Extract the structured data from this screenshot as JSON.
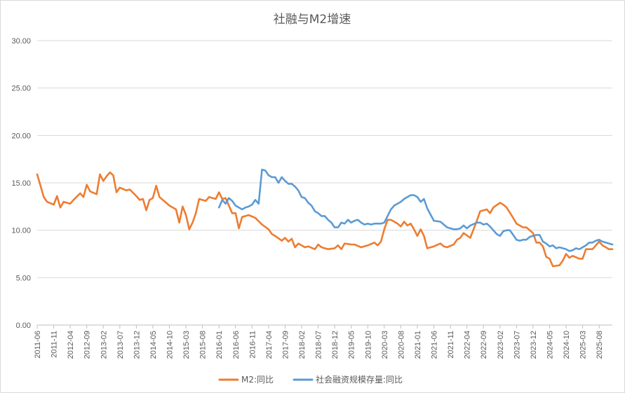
{
  "chart_data": {
    "type": "line",
    "title": "社融与M2增速",
    "xlabel": "",
    "ylabel": "",
    "ylim": [
      0,
      30
    ],
    "yticks": [
      "0.00",
      "5.00",
      "10.00",
      "15.00",
      "20.00",
      "25.00",
      "30.00"
    ],
    "xlim": [
      "2011-06",
      "2025-12"
    ],
    "xticks": [
      "2011-06",
      "2011-11",
      "2012-04",
      "2012-09",
      "2013-02",
      "2013-07",
      "2013-12",
      "2014-05",
      "2014-10",
      "2015-03",
      "2015-08",
      "2016-01",
      "2016-06",
      "2016-11",
      "2017-04",
      "2017-09",
      "2018-02",
      "2018-07",
      "2018-12",
      "2019-05",
      "2019-10",
      "2020-03",
      "2020-08",
      "2021-01",
      "2021-06",
      "2021-11",
      "2022-04",
      "2022-09",
      "2023-02",
      "2023-07",
      "2023-12",
      "2024-05",
      "2024-10",
      "2025-03",
      "2025-08"
    ],
    "grid": true,
    "legend": "bottom",
    "series": [
      {
        "name": "M2:同比",
        "color": "#ED7D31",
        "x": [
          "2011-06",
          "2011-08",
          "2011-09",
          "2011-11",
          "2011-12",
          "2012-01",
          "2012-02",
          "2012-04",
          "2012-05",
          "2012-07",
          "2012-08",
          "2012-09",
          "2012-10",
          "2012-12",
          "2013-01",
          "2013-02",
          "2013-03",
          "2013-04",
          "2013-05",
          "2013-06",
          "2013-07",
          "2013-09",
          "2013-10",
          "2013-12",
          "2014-01",
          "2014-02",
          "2014-03",
          "2014-04",
          "2014-05",
          "2014-06",
          "2014-07",
          "2014-09",
          "2014-10",
          "2014-12",
          "2015-01",
          "2015-02",
          "2015-03",
          "2015-04",
          "2015-05",
          "2015-06",
          "2015-07",
          "2015-09",
          "2015-10",
          "2015-12",
          "2016-01",
          "2016-02",
          "2016-03",
          "2016-05",
          "2016-06",
          "2016-07",
          "2016-08",
          "2016-10",
          "2016-12",
          "2017-02",
          "2017-04",
          "2017-05",
          "2017-06",
          "2017-08",
          "2017-09",
          "2017-10",
          "2017-11",
          "2017-12",
          "2018-01",
          "2018-03",
          "2018-04",
          "2018-06",
          "2018-07",
          "2018-08",
          "2018-10",
          "2018-12",
          "2019-01",
          "2019-02",
          "2019-03",
          "2019-05",
          "2019-06",
          "2019-08",
          "2019-10",
          "2019-12",
          "2020-01",
          "2020-02",
          "2020-03",
          "2020-04",
          "2020-05",
          "2020-07",
          "2020-08",
          "2020-09",
          "2020-10",
          "2020-11",
          "2020-12",
          "2021-01",
          "2021-02",
          "2021-03",
          "2021-04",
          "2021-06",
          "2021-08",
          "2021-09",
          "2021-10",
          "2021-12",
          "2022-01",
          "2022-02",
          "2022-03",
          "2022-05",
          "2022-06",
          "2022-07",
          "2022-08",
          "2022-10",
          "2022-11",
          "2022-12",
          "2023-02",
          "2023-03",
          "2023-04",
          "2023-06",
          "2023-07",
          "2023-09",
          "2023-10",
          "2023-12",
          "2024-01",
          "2024-02",
          "2024-03",
          "2024-04",
          "2024-05",
          "2024-06",
          "2024-08",
          "2024-09",
          "2024-10",
          "2024-11",
          "2024-12",
          "2025-02",
          "2025-03",
          "2025-04",
          "2025-06",
          "2025-08",
          "2025-09",
          "2025-10",
          "2025-11",
          "2025-12"
        ],
        "values": [
          15.9,
          13.5,
          13.0,
          12.7,
          13.6,
          12.4,
          13.0,
          12.8,
          13.2,
          13.9,
          13.5,
          14.8,
          14.1,
          13.8,
          15.9,
          15.2,
          15.7,
          16.1,
          15.8,
          14.0,
          14.5,
          14.2,
          14.3,
          13.6,
          13.2,
          13.3,
          12.1,
          13.2,
          13.4,
          14.7,
          13.5,
          12.9,
          12.6,
          12.2,
          10.8,
          12.5,
          11.6,
          10.1,
          10.8,
          11.8,
          13.3,
          13.1,
          13.5,
          13.3,
          14.0,
          13.3,
          13.4,
          11.8,
          11.8,
          10.2,
          11.4,
          11.6,
          11.3,
          10.6,
          10.1,
          9.6,
          9.4,
          8.9,
          9.2,
          8.8,
          9.1,
          8.2,
          8.6,
          8.2,
          8.3,
          8.0,
          8.5,
          8.2,
          8.0,
          8.1,
          8.4,
          8.0,
          8.6,
          8.5,
          8.5,
          8.2,
          8.4,
          8.7,
          8.4,
          8.8,
          10.1,
          11.1,
          11.1,
          10.7,
          10.4,
          10.9,
          10.5,
          10.7,
          10.1,
          9.4,
          10.1,
          9.4,
          8.1,
          8.3,
          8.6,
          8.3,
          8.2,
          8.5,
          9.0,
          9.2,
          9.7,
          9.2,
          10.1,
          11.0,
          12.0,
          12.2,
          11.8,
          12.4,
          12.9,
          12.7,
          12.4,
          11.3,
          10.7,
          10.3,
          10.3,
          9.7,
          8.7,
          8.7,
          8.3,
          7.2,
          7.0,
          6.2,
          6.3,
          6.8,
          7.5,
          7.1,
          7.3,
          7.0,
          7.0,
          8.0,
          8.0,
          8.8,
          8.4,
          8.2,
          8.0,
          8.0
        ]
      },
      {
        "name": "社会融资规模存量:同比",
        "color": "#5B9BD5",
        "x": [
          "2016-01",
          "2016-02",
          "2016-03",
          "2016-04",
          "2016-05",
          "2016-06",
          "2016-08",
          "2016-09",
          "2016-10",
          "2016-11",
          "2016-12",
          "2017-01",
          "2017-02",
          "2017-03",
          "2017-04",
          "2017-05",
          "2017-06",
          "2017-07",
          "2017-08",
          "2017-09",
          "2017-10",
          "2017-11",
          "2017-12",
          "2018-01",
          "2018-02",
          "2018-03",
          "2018-04",
          "2018-05",
          "2018-06",
          "2018-07",
          "2018-08",
          "2018-09",
          "2018-10",
          "2018-11",
          "2018-12",
          "2019-01",
          "2019-02",
          "2019-03",
          "2019-04",
          "2019-05",
          "2019-06",
          "2019-07",
          "2019-08",
          "2019-09",
          "2019-10",
          "2019-11",
          "2019-12",
          "2020-01",
          "2020-02",
          "2020-03",
          "2020-04",
          "2020-05",
          "2020-06",
          "2020-07",
          "2020-08",
          "2020-09",
          "2020-10",
          "2020-11",
          "2020-12",
          "2021-01",
          "2021-02",
          "2021-03",
          "2021-04",
          "2021-06",
          "2021-08",
          "2021-10",
          "2021-12",
          "2022-01",
          "2022-02",
          "2022-03",
          "2022-04",
          "2022-05",
          "2022-07",
          "2022-08",
          "2022-09",
          "2022-10",
          "2022-11",
          "2022-12",
          "2023-01",
          "2023-02",
          "2023-03",
          "2023-04",
          "2023-05",
          "2023-06",
          "2023-07",
          "2023-08",
          "2023-09",
          "2023-10",
          "2023-11",
          "2023-12",
          "2024-01",
          "2024-02",
          "2024-03",
          "2024-04",
          "2024-05",
          "2024-06",
          "2024-07",
          "2024-08",
          "2024-09",
          "2024-10",
          "2024-11",
          "2024-12",
          "2025-01",
          "2025-02",
          "2025-03",
          "2025-04",
          "2025-05",
          "2025-06",
          "2025-07",
          "2025-08",
          "2025-09",
          "2025-10",
          "2025-11",
          "2025-12"
        ],
        "values": [
          12.4,
          13.2,
          12.8,
          13.4,
          13.1,
          12.6,
          12.2,
          12.4,
          12.5,
          12.7,
          13.2,
          12.8,
          16.4,
          16.3,
          15.8,
          15.6,
          15.6,
          15.0,
          15.6,
          15.2,
          14.9,
          14.9,
          14.6,
          14.2,
          13.5,
          13.4,
          12.9,
          12.6,
          12.0,
          11.8,
          11.5,
          11.5,
          11.1,
          10.8,
          10.3,
          10.3,
          10.8,
          10.7,
          11.1,
          10.8,
          11.0,
          11.1,
          10.8,
          10.6,
          10.7,
          10.6,
          10.7,
          10.7,
          10.7,
          10.8,
          11.5,
          12.2,
          12.6,
          12.8,
          13.0,
          13.3,
          13.5,
          13.7,
          13.7,
          13.5,
          13.0,
          13.3,
          12.3,
          11.0,
          10.9,
          10.3,
          10.1,
          10.1,
          10.2,
          10.5,
          10.2,
          10.5,
          10.8,
          10.8,
          10.6,
          10.7,
          10.4,
          10.0,
          9.6,
          9.4,
          9.9,
          10.0,
          10.0,
          9.5,
          9.0,
          8.9,
          9.0,
          9.0,
          9.3,
          9.4,
          9.5,
          9.5,
          8.8,
          8.6,
          8.3,
          8.4,
          8.1,
          8.2,
          8.1,
          8.0,
          7.8,
          7.9,
          8.1,
          8.0,
          8.2,
          8.4,
          8.7,
          8.7,
          8.9,
          9.0,
          8.8,
          8.7,
          8.6,
          8.5
        ]
      }
    ]
  }
}
